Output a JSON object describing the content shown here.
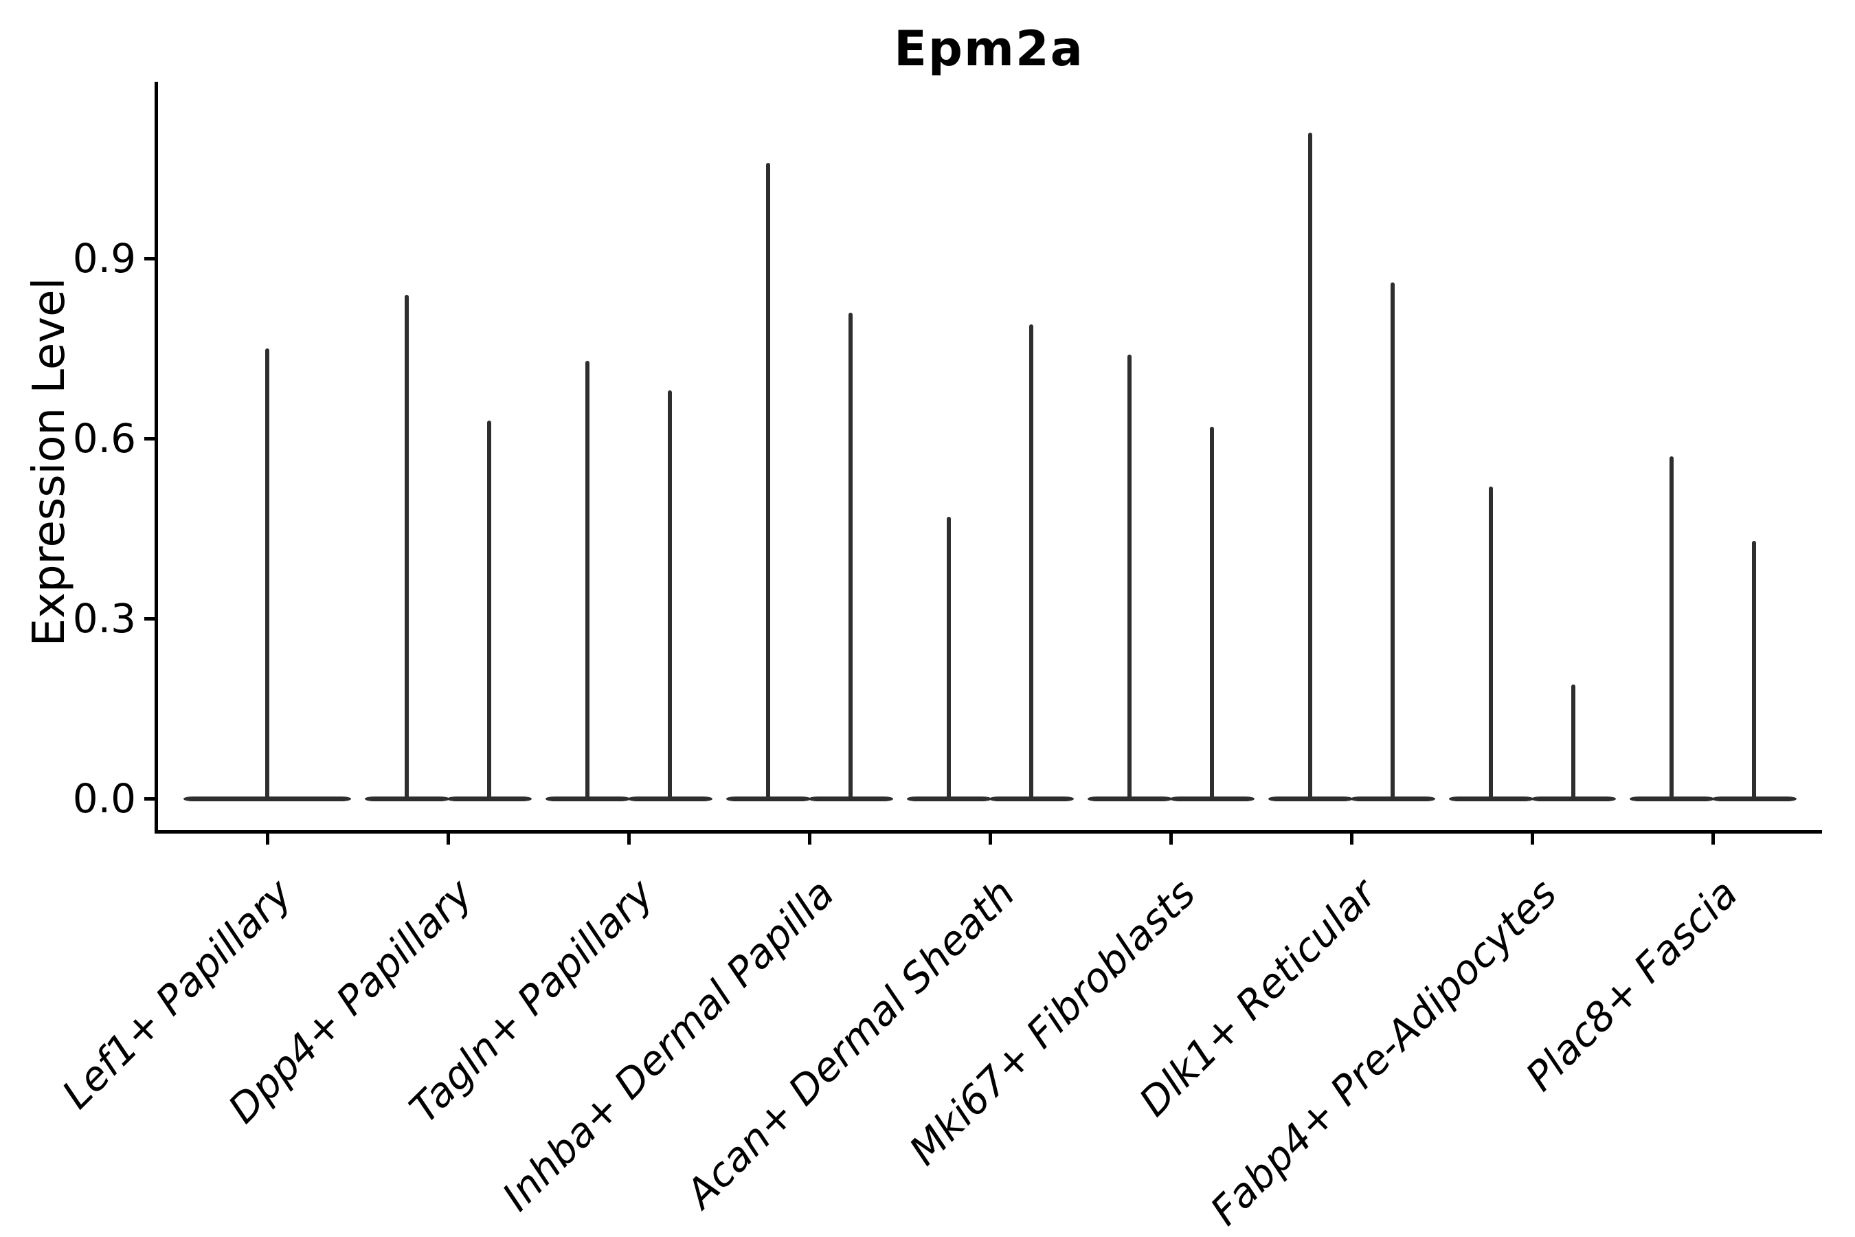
{
  "title": "Epm2a",
  "ylabel": "Expression Level",
  "colors": {
    "violin": "#2e2e2e",
    "axis": "#000000",
    "text": "#000000",
    "background": "#ffffff"
  },
  "chart_data": {
    "type": "violin",
    "title": "Epm2a",
    "xlabel": "",
    "ylabel": "Expression Level",
    "ylim": [
      -0.05,
      1.19
    ],
    "yticks": [
      0.0,
      0.3,
      0.6,
      0.9
    ],
    "ytick_labels": [
      "0.0",
      "0.3",
      "0.6",
      "0.9"
    ],
    "grid": false,
    "legend_position": "none",
    "baseline_value": 0.0,
    "description": "Each category shows violin(s) collapsed to a flat disc at expression 0 with a thin spike reaching the maximum expression value; all categories except the first contain two side-by-side sub-violins.",
    "categories": [
      "Lef1+ Papillary",
      "Dpp4+ Papillary",
      "Tagln+ Papillary",
      "Inhba+ Dermal Papilla",
      "Acan+ Dermal Sheath",
      "Mki67+ Fibroblasts",
      "Dlk1+ Reticular",
      "Fabp4+ Pre-Adipocytes",
      "Plac8+ Fascia"
    ],
    "violins": [
      {
        "category": "Lef1+ Papillary",
        "spike_maxima": [
          0.75
        ]
      },
      {
        "category": "Dpp4+ Papillary",
        "spike_maxima": [
          0.84,
          0.63
        ]
      },
      {
        "category": "Tagln+ Papillary",
        "spike_maxima": [
          0.73,
          0.68
        ]
      },
      {
        "category": "Inhba+ Dermal Papilla",
        "spike_maxima": [
          1.06,
          0.81
        ]
      },
      {
        "category": "Acan+ Dermal Sheath",
        "spike_maxima": [
          0.47,
          0.79
        ]
      },
      {
        "category": "Mki67+ Fibroblasts",
        "spike_maxima": [
          0.74,
          0.62
        ]
      },
      {
        "category": "Dlk1+ Reticular",
        "spike_maxima": [
          1.11,
          0.86
        ]
      },
      {
        "category": "Fabp4+ Pre-Adipocytes",
        "spike_maxima": [
          0.52,
          0.19
        ]
      },
      {
        "category": "Plac8+ Fascia",
        "spike_maxima": [
          0.57,
          0.43
        ]
      }
    ]
  }
}
